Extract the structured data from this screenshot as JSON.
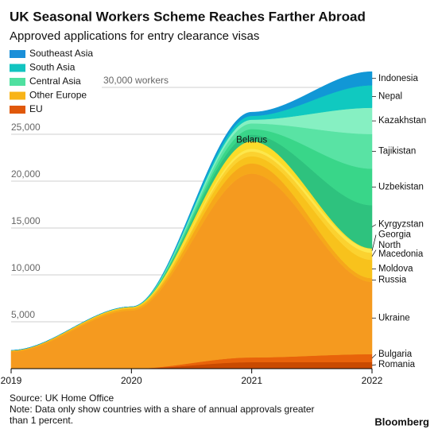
{
  "chart_data": {
    "type": "stacked_area",
    "title": "UK Seasonal Workers Scheme Reaches Farther Abroad",
    "subtitle": "Approved applications for entry clearance visas",
    "source": "Source: UK Home Office",
    "note": "Note: Data only show countries with a share of annual approvals greater than 1 percent.",
    "brand": "Bloomberg",
    "legend": [
      {
        "name": "Southeast Asia",
        "color": "#1a8fd8"
      },
      {
        "name": "South Asia",
        "color": "#12c4c0"
      },
      {
        "name": "Central Asia",
        "color": "#4fe0a0"
      },
      {
        "name": "Other Europe",
        "color": "#f8b418"
      },
      {
        "name": "EU",
        "color": "#e0580a"
      }
    ],
    "x": [
      2019,
      2020,
      2021,
      2022
    ],
    "xlim": [
      2019,
      2022
    ],
    "xticks": [
      2019,
      2020,
      2021,
      2022
    ],
    "ylim": [
      0,
      35000
    ],
    "yticks": [
      {
        "value": 5000,
        "label": "5,000"
      },
      {
        "value": 10000,
        "label": "10,000"
      },
      {
        "value": 15000,
        "label": "15,000"
      },
      {
        "value": 20000,
        "label": "20,000"
      },
      {
        "value": 25000,
        "label": "25,000"
      },
      {
        "value": 30000,
        "label": "30,000 workers"
      }
    ],
    "grid": true,
    "series": [
      {
        "name": "Romania",
        "color": "#c94a00",
        "values": [
          0,
          0,
          700,
          700
        ]
      },
      {
        "name": "Bulgaria",
        "color": "#e8630a",
        "values": [
          0,
          0,
          500,
          850
        ]
      },
      {
        "name": "Ukraine",
        "color": "#f59a1f",
        "values": [
          1800,
          6200,
          19600,
          7700
        ]
      },
      {
        "name": "Russia",
        "color": "#f6a81a",
        "values": [
          100,
          200,
          1100,
          400
        ]
      },
      {
        "name": "Moldova",
        "color": "#f8c21c",
        "values": [
          60,
          150,
          760,
          1950
        ]
      },
      {
        "name": "North Macedonia",
        "color": "#fbd230",
        "values": [
          0,
          0,
          500,
          760
        ]
      },
      {
        "name": "Georgia",
        "color": "#fde74c",
        "values": [
          0,
          0,
          300,
          420
        ]
      },
      {
        "name": "Belarus",
        "color": "#fbdc2a",
        "values": [
          0,
          50,
          800,
          50
        ]
      },
      {
        "name": "Kyrgyzstan",
        "color": "#2ec27e",
        "values": [
          0,
          0,
          700,
          4600
        ]
      },
      {
        "name": "Uzbekistan",
        "color": "#39d689",
        "values": [
          0,
          0,
          600,
          3900
        ]
      },
      {
        "name": "Tajikistan",
        "color": "#59e3a4",
        "values": [
          0,
          0,
          600,
          3700
        ]
      },
      {
        "name": "Kazakhstan",
        "color": "#86f0c2",
        "values": [
          0,
          0,
          400,
          2800
        ]
      },
      {
        "name": "Nepal",
        "color": "#10c9c0",
        "values": [
          0,
          0,
          400,
          2400
        ]
      },
      {
        "name": "Indonesia",
        "color": "#1197d6",
        "values": [
          0,
          0,
          400,
          1450
        ]
      }
    ]
  }
}
